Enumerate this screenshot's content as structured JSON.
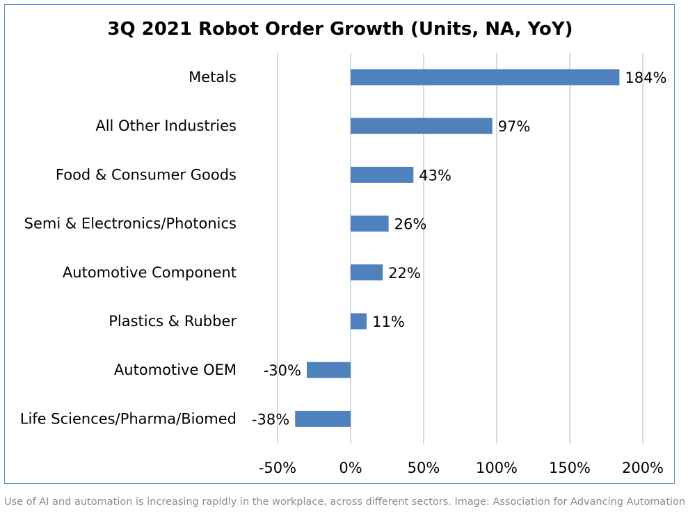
{
  "chart_data": {
    "type": "bar",
    "orientation": "horizontal",
    "title": "3Q 2021 Robot Order Growth (Units, NA, YoY)",
    "categories": [
      "Metals",
      "All Other Industries",
      "Food & Consumer Goods",
      "Semi & Electronics/Photonics",
      "Automotive Component",
      "Plastics & Rubber",
      "Automotive OEM",
      "Life Sciences/Pharma/Biomed"
    ],
    "values": [
      184,
      97,
      43,
      26,
      22,
      11,
      -30,
      -38
    ],
    "value_labels": [
      "184%",
      "97%",
      "43%",
      "26%",
      "22%",
      "11%",
      "-30%",
      "-38%"
    ],
    "x_ticks": [
      -50,
      0,
      50,
      100,
      150,
      200
    ],
    "x_tick_labels": [
      "-50%",
      "0%",
      "50%",
      "100%",
      "150%",
      "200%"
    ],
    "xlim": [
      -50,
      200
    ],
    "grid": "vertical",
    "legend": "none",
    "bar_color": "#4f81bd"
  },
  "caption": "Use of AI and automation is increasing rapidly in the workplace, across different sectors. Image: Association for Advancing Automation"
}
